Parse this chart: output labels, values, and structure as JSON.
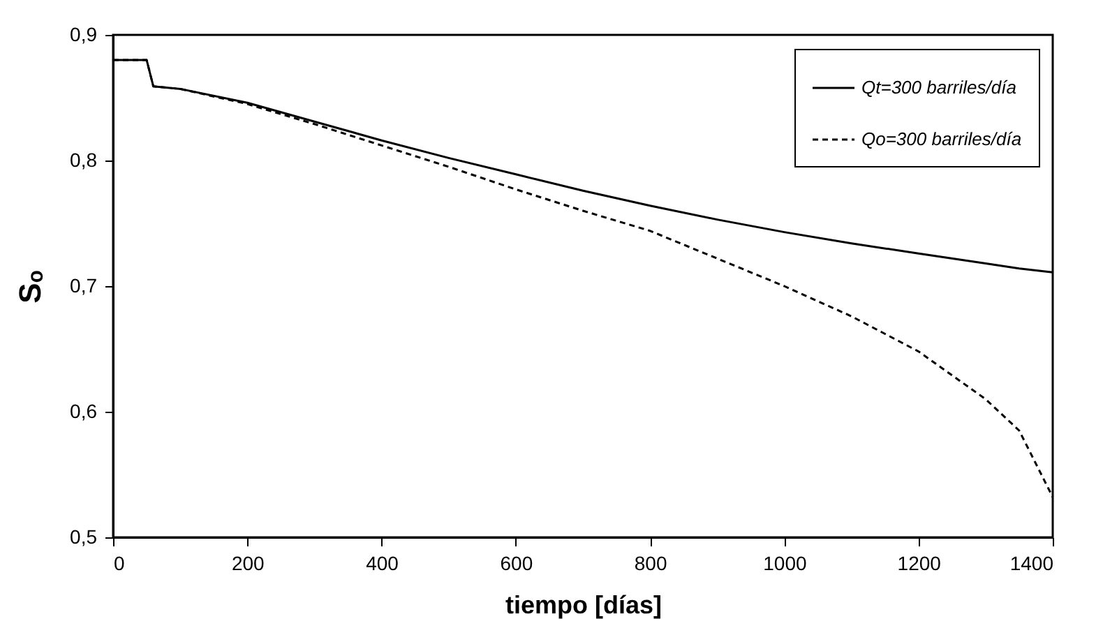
{
  "chart_data": {
    "type": "line",
    "xlabel": "tiempo [días]",
    "ylabel": "Sₒ",
    "x": [
      0,
      50,
      60,
      100,
      200,
      300,
      400,
      500,
      600,
      700,
      800,
      900,
      1000,
      1100,
      1200,
      1300,
      1350,
      1400
    ],
    "series": [
      {
        "name": "Qt=300 barriles/día",
        "color": "#000000",
        "line_style": "solid",
        "values": [
          0.88,
          0.88,
          0.859,
          0.857,
          0.846,
          0.831,
          0.816,
          0.802,
          0.789,
          0.776,
          0.764,
          0.753,
          0.743,
          0.734,
          0.726,
          0.718,
          0.714,
          0.711
        ]
      },
      {
        "name": "Qo=300 barriles/día",
        "color": "#000000",
        "line_style": "dashed",
        "values": [
          0.88,
          0.88,
          0.859,
          0.857,
          0.845,
          0.829,
          0.812,
          0.795,
          0.777,
          0.76,
          0.744,
          0.722,
          0.7,
          0.676,
          0.648,
          0.61,
          0.585,
          0.532
        ]
      }
    ],
    "xlim": [
      0,
      1400
    ],
    "xticks": [
      0,
      200,
      400,
      600,
      800,
      1000,
      1200,
      1400
    ],
    "ylim": [
      0.5,
      0.9
    ],
    "yticks": [
      {
        "value": 0.5,
        "label": "0,5"
      },
      {
        "value": 0.6,
        "label": "0,6"
      },
      {
        "value": 0.7,
        "label": "0,7"
      },
      {
        "value": 0.8,
        "label": "0,8"
      },
      {
        "value": 0.9,
        "label": "0,9"
      }
    ],
    "grid": false,
    "legend": "top right",
    "marker": "none"
  }
}
